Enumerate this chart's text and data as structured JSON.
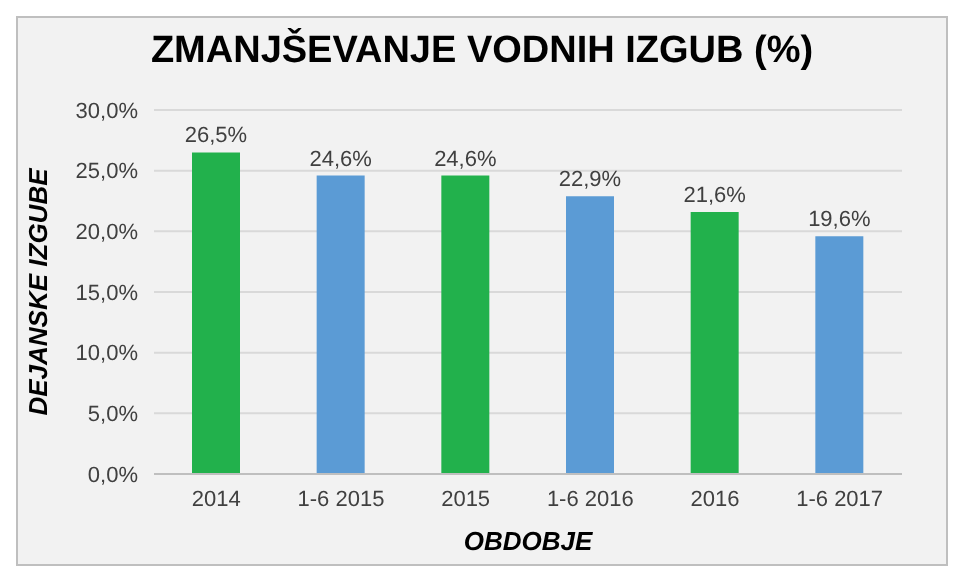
{
  "chart_data": {
    "type": "bar",
    "title": "ZMANJŠEVANJE VODNIH IZGUB (%)",
    "xlabel": "OBDOBJE",
    "ylabel": "DEJANSKE IZGUBE",
    "categories": [
      "2014",
      "1-6 2015",
      "2015",
      "1-6 2016",
      "2016",
      "1-6 2017"
    ],
    "values": [
      26.5,
      24.6,
      24.6,
      22.9,
      21.6,
      19.6
    ],
    "colors": [
      "#22b14c",
      "#5b9bd5",
      "#22b14c",
      "#5b9bd5",
      "#22b14c",
      "#5b9bd5"
    ],
    "value_labels": [
      "26,5%",
      "24,6%",
      "24,6%",
      "22,9%",
      "21,6%",
      "19,6%"
    ],
    "ylim": [
      0,
      30
    ],
    "yticks": [
      {
        "value": 0,
        "label": "0,0%"
      },
      {
        "value": 5,
        "label": "5,0%"
      },
      {
        "value": 10,
        "label": "10,0%"
      },
      {
        "value": 15,
        "label": "15,0%"
      },
      {
        "value": 20,
        "label": "20,0%"
      },
      {
        "value": 25,
        "label": "25,0%"
      },
      {
        "value": 30,
        "label": "30,0%"
      }
    ],
    "grid": "y"
  }
}
